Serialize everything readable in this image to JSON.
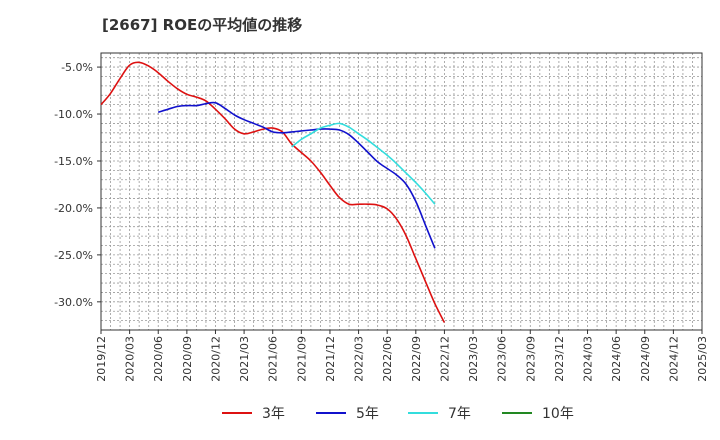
{
  "chart_data": {
    "type": "line",
    "title": "[2667]  ROEの平均値の推移",
    "xlabel": "",
    "ylabel": "",
    "ylim": [
      -33,
      -3.5
    ],
    "y_ticks": [
      -5,
      -10,
      -15,
      -20,
      -25,
      -30
    ],
    "y_tick_labels": [
      "-5.0%",
      "-10.0%",
      "-15.0%",
      "-20.0%",
      "-25.0%",
      "-30.0%"
    ],
    "x_tick_labels": [
      "2019/12",
      "2020/03",
      "2020/06",
      "2020/09",
      "2020/12",
      "2021/03",
      "2021/06",
      "2021/09",
      "2021/12",
      "2022/03",
      "2022/06",
      "2022/09",
      "2022/12",
      "2023/03",
      "2023/06",
      "2023/09",
      "2023/12",
      "2024/03",
      "2024/06",
      "2024/09",
      "2024/12",
      "2025/03"
    ],
    "grid": true,
    "legend_position": "bottom",
    "series": [
      {
        "name": "3年",
        "color": "#dd1111",
        "points": [
          [
            0,
            -9.0
          ],
          [
            1,
            -7.8
          ],
          [
            2,
            -6.2
          ],
          [
            3,
            -4.8
          ],
          [
            4,
            -4.5
          ],
          [
            5,
            -4.9
          ],
          [
            6,
            -5.6
          ],
          [
            7,
            -6.5
          ],
          [
            8,
            -7.3
          ],
          [
            9,
            -7.9
          ],
          [
            10,
            -8.2
          ],
          [
            11,
            -8.6
          ],
          [
            12,
            -9.5
          ],
          [
            13,
            -10.5
          ],
          [
            14,
            -11.6
          ],
          [
            15,
            -12.1
          ],
          [
            16,
            -11.9
          ],
          [
            17,
            -11.6
          ],
          [
            18,
            -11.5
          ],
          [
            19,
            -11.9
          ],
          [
            20,
            -13.2
          ],
          [
            21,
            -14.1
          ],
          [
            22,
            -15.0
          ],
          [
            23,
            -16.2
          ],
          [
            24,
            -17.6
          ],
          [
            25,
            -18.9
          ],
          [
            26,
            -19.6
          ],
          [
            27,
            -19.6
          ],
          [
            28,
            -19.6
          ],
          [
            29,
            -19.7
          ],
          [
            30,
            -20.1
          ],
          [
            31,
            -21.2
          ],
          [
            32,
            -23.0
          ],
          [
            33,
            -25.4
          ],
          [
            34,
            -27.8
          ],
          [
            35,
            -30.2
          ],
          [
            36,
            -32.2
          ]
        ]
      },
      {
        "name": "5年",
        "color": "#1111cc",
        "points": [
          [
            6,
            -9.8
          ],
          [
            7,
            -9.5
          ],
          [
            8,
            -9.2
          ],
          [
            9,
            -9.1
          ],
          [
            10,
            -9.1
          ],
          [
            11,
            -8.9
          ],
          [
            12,
            -8.8
          ],
          [
            13,
            -9.4
          ],
          [
            14,
            -10.1
          ],
          [
            15,
            -10.6
          ],
          [
            16,
            -11.0
          ],
          [
            17,
            -11.4
          ],
          [
            18,
            -11.9
          ],
          [
            19,
            -12.0
          ],
          [
            20,
            -11.9
          ],
          [
            21,
            -11.8
          ],
          [
            22,
            -11.7
          ],
          [
            23,
            -11.6
          ],
          [
            24,
            -11.6
          ],
          [
            25,
            -11.7
          ],
          [
            26,
            -12.2
          ],
          [
            27,
            -13.1
          ],
          [
            28,
            -14.1
          ],
          [
            29,
            -15.1
          ],
          [
            30,
            -15.8
          ],
          [
            31,
            -16.5
          ],
          [
            32,
            -17.5
          ],
          [
            33,
            -19.3
          ],
          [
            34,
            -21.8
          ],
          [
            35,
            -24.3
          ]
        ]
      },
      {
        "name": "7年",
        "color": "#33dddd",
        "points": [
          [
            20,
            -13.5
          ],
          [
            21,
            -12.7
          ],
          [
            22,
            -12.1
          ],
          [
            23,
            -11.5
          ],
          [
            24,
            -11.2
          ],
          [
            25,
            -11.0
          ],
          [
            26,
            -11.4
          ],
          [
            27,
            -12.1
          ],
          [
            28,
            -12.8
          ],
          [
            29,
            -13.6
          ],
          [
            30,
            -14.4
          ],
          [
            31,
            -15.3
          ],
          [
            32,
            -16.3
          ],
          [
            33,
            -17.3
          ],
          [
            34,
            -18.4
          ],
          [
            35,
            -19.6
          ]
        ]
      },
      {
        "name": "10年",
        "color": "#228822",
        "points": []
      }
    ]
  }
}
